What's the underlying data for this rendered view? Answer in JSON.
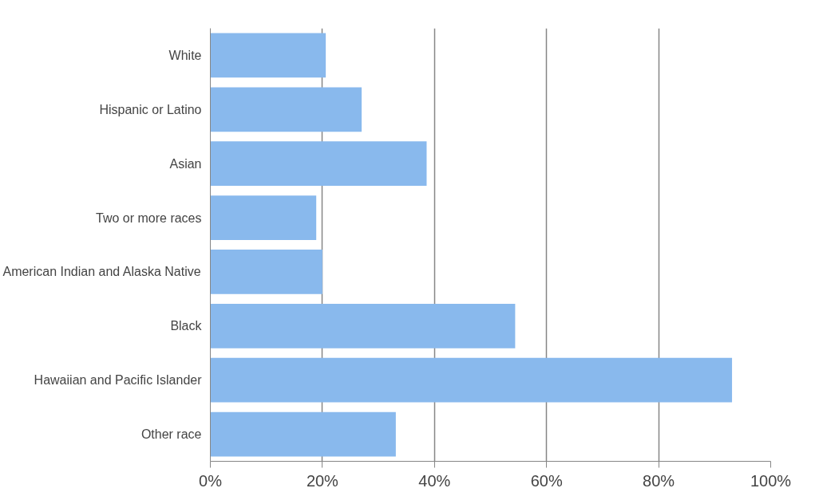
{
  "chart_data": {
    "type": "bar",
    "orientation": "horizontal",
    "categories": [
      "White",
      "Hispanic or Latino",
      "Asian",
      "Two or more races",
      "American Indian and Alaska Native",
      "Black",
      "Hawaiian and Pacific Islander",
      "Other race"
    ],
    "values": [
      20.6,
      27.0,
      38.6,
      18.9,
      20.0,
      54.4,
      93.1,
      33.1
    ],
    "color": "#89b9ed",
    "xlim": [
      0,
      100
    ],
    "xticks": [
      {
        "value": 0,
        "label": "0%"
      },
      {
        "value": 20,
        "label": "20%"
      },
      {
        "value": 40,
        "label": "40%"
      },
      {
        "value": 60,
        "label": "60%"
      },
      {
        "value": 80,
        "label": "80%"
      },
      {
        "value": 100,
        "label": "100%"
      }
    ],
    "grid": "x"
  }
}
